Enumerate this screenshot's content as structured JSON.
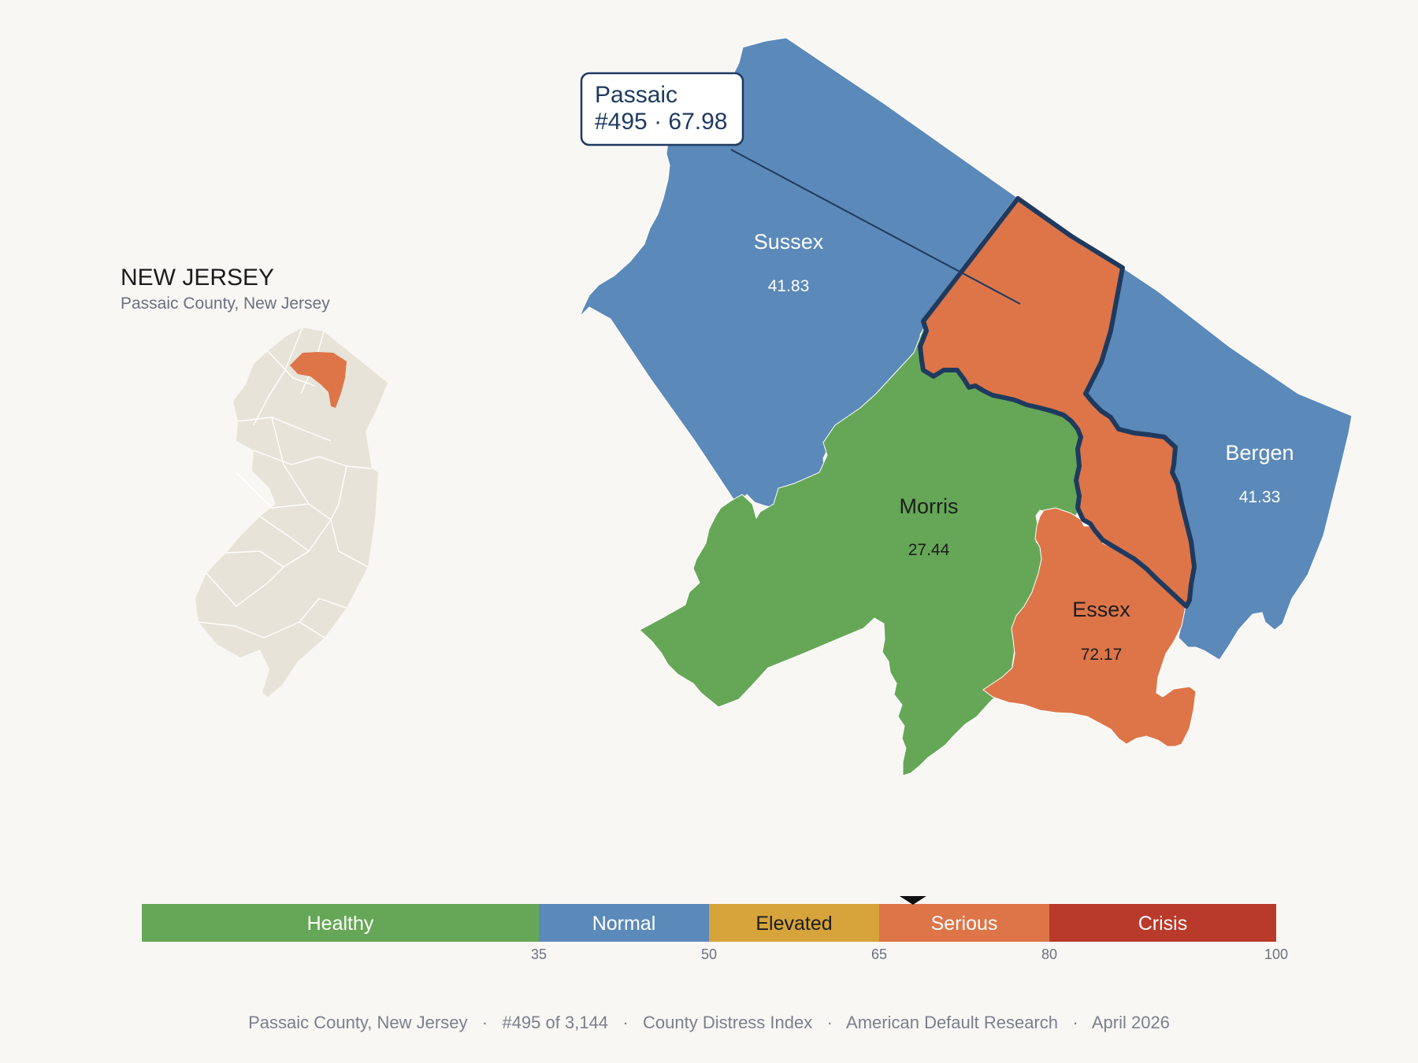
{
  "colors": {
    "healthy": "#66a757",
    "normal": "#5b89b9",
    "elevated": "#d6a43a",
    "serious": "#dd7549",
    "crisis": "#b93a2b",
    "outline": "#1f3a5f",
    "inset_base": "#e8e3d8",
    "background": "#f9f7f4"
  },
  "inset": {
    "title": "NEW JERSEY",
    "subtitle": "Passaic County, New Jersey"
  },
  "focus_county": {
    "name": "Passaic",
    "rank_label": "#495 · 67.98",
    "score": 67.98,
    "rank": 495,
    "category": "serious"
  },
  "counties": [
    {
      "name": "Sussex",
      "score_label": "41.83",
      "score": 41.83,
      "category": "normal"
    },
    {
      "name": "Morris",
      "score_label": "27.44",
      "score": 27.44,
      "category": "healthy"
    },
    {
      "name": "Bergen",
      "score_label": "41.33",
      "score": 41.33,
      "category": "normal"
    },
    {
      "name": "Essex",
      "score_label": "72.17",
      "score": 72.17,
      "category": "serious"
    }
  ],
  "scale": {
    "min": 0,
    "max": 100,
    "marker_value": 67.98,
    "segments": [
      {
        "label": "Healthy",
        "from": 0,
        "to": 35,
        "category": "healthy"
      },
      {
        "label": "Normal",
        "from": 35,
        "to": 50,
        "category": "normal"
      },
      {
        "label": "Elevated",
        "from": 50,
        "to": 65,
        "category": "elevated"
      },
      {
        "label": "Serious",
        "from": 65,
        "to": 80,
        "category": "serious"
      },
      {
        "label": "Crisis",
        "from": 80,
        "to": 100,
        "category": "crisis"
      }
    ],
    "ticks": [
      "35",
      "50",
      "65",
      "80",
      "100"
    ]
  },
  "footer": {
    "items": [
      "Passaic County, New Jersey",
      "#495 of 3,144",
      "County Distress Index",
      "American Default Research",
      "April 2026"
    ],
    "separator": "·"
  }
}
